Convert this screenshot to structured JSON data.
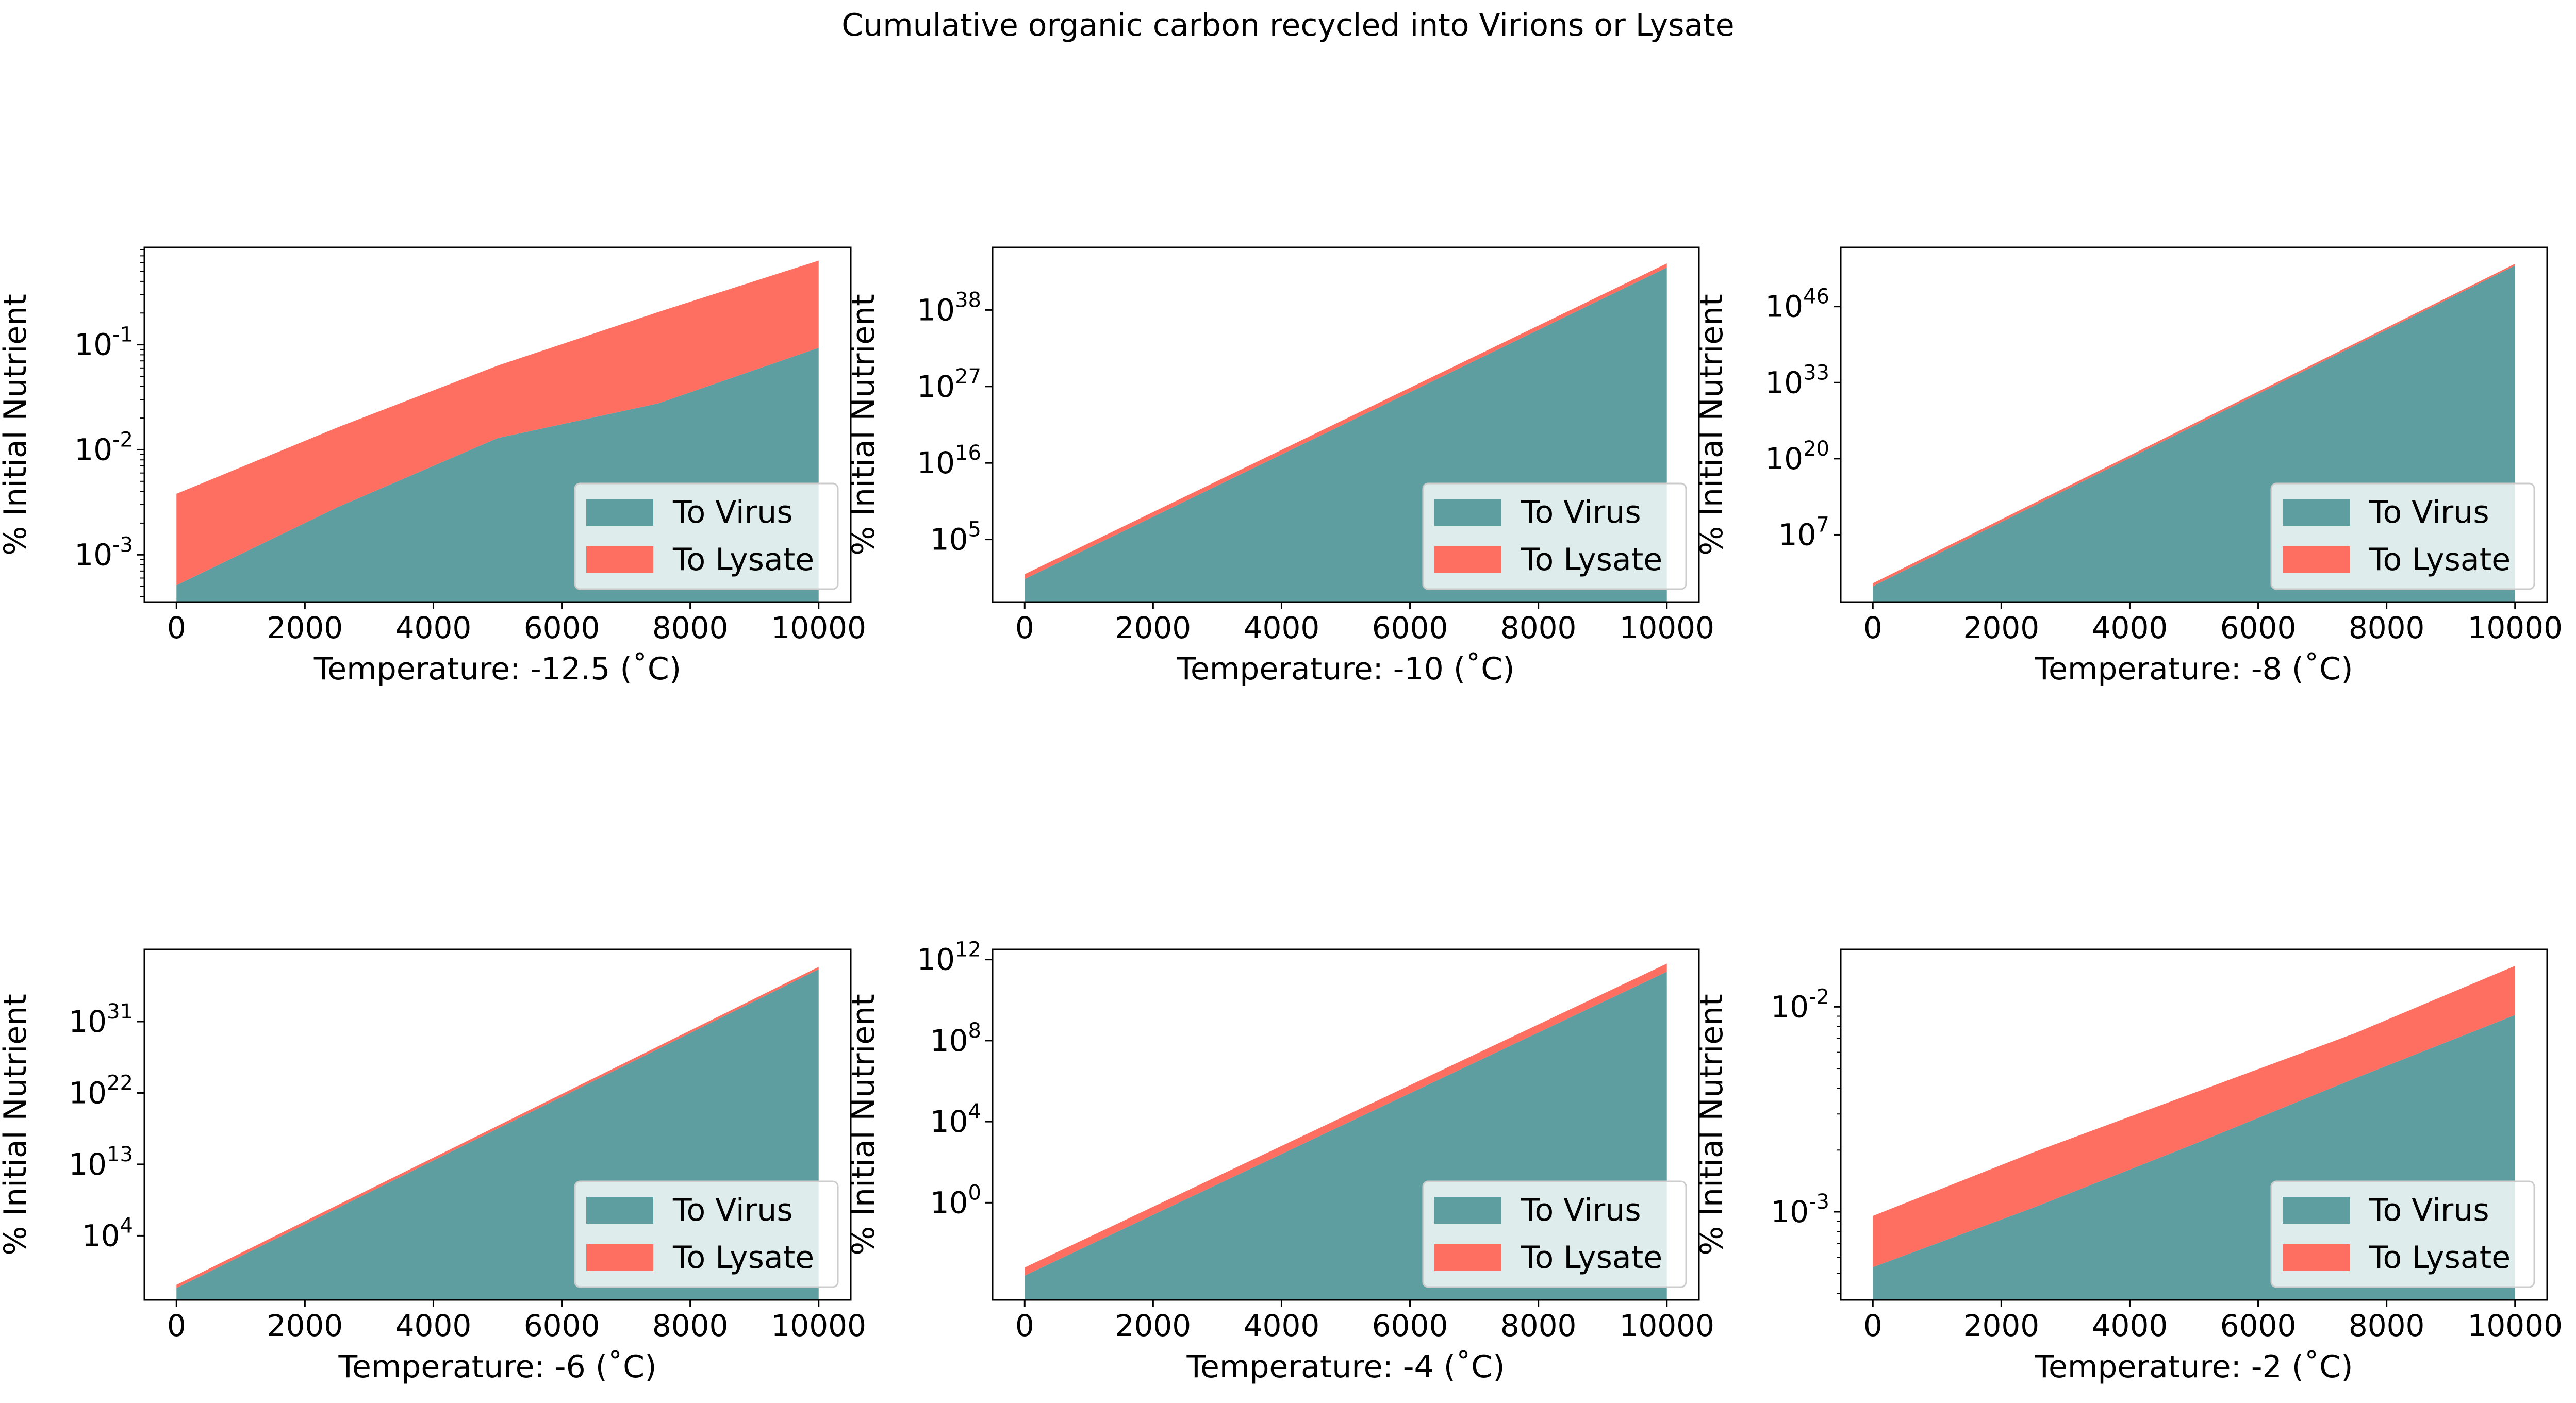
{
  "figure": {
    "title": "Cumulative organic carbon recycled into Virions or Lysate"
  },
  "colors": {
    "virus": "#5f9ea0",
    "lysate": "#ff6f61",
    "legend_bg": "#ffffff",
    "axis": "#000000"
  },
  "chart_data": [
    {
      "type": "area",
      "stacked": true,
      "yscale": "log",
      "xlabel": "Temperature: -12.5 (˚C)",
      "ylabel": "% Initial Nutrient",
      "xlim": [
        -500,
        10500
      ],
      "ylim_exp": [
        -3.45,
        -0.0746
      ],
      "xticks": [
        0,
        2000,
        4000,
        6000,
        8000,
        10000
      ],
      "yticks": [
        {
          "exp": -3,
          "label": "10^-3"
        },
        {
          "exp": -2,
          "label": "10^-2"
        },
        {
          "exp": -1,
          "label": "10^-1"
        }
      ],
      "x": [
        0,
        2500,
        5000,
        7500,
        10000
      ],
      "series": [
        {
          "name": "To Virus",
          "top_exp": [
            -3.29,
            -2.55,
            -1.89,
            -1.56,
            -1.03
          ]
        },
        {
          "name": "To Lysate",
          "top_exp": [
            -2.42,
            -1.79,
            -1.2,
            -0.69,
            -0.2
          ]
        }
      ],
      "legend": {
        "location": "lower right",
        "entries": [
          "To Virus",
          "To Lysate"
        ]
      }
    },
    {
      "type": "area",
      "stacked": true,
      "yscale": "log",
      "xlabel": "Temperature: -10 (˚C)",
      "ylabel": "% Initial Nutrient",
      "xlim": [
        -500,
        10500
      ],
      "ylim_exp": [
        -4.0,
        47.0
      ],
      "xticks": [
        0,
        2000,
        4000,
        6000,
        8000,
        10000
      ],
      "yticks": [
        {
          "exp": 5,
          "label": "10^5"
        },
        {
          "exp": 16,
          "label": "10^16"
        },
        {
          "exp": 27,
          "label": "10^27"
        },
        {
          "exp": 38,
          "label": "10^38"
        }
      ],
      "x": [
        0,
        10000
      ],
      "series": [
        {
          "name": "To Virus",
          "top_exp": [
            -0.7,
            44.1
          ]
        },
        {
          "name": "To Lysate",
          "top_exp": [
            0.0,
            44.7
          ]
        }
      ],
      "legend": {
        "location": "lower right",
        "entries": [
          "To Virus",
          "To Lysate"
        ]
      }
    },
    {
      "type": "area",
      "stacked": true,
      "yscale": "log",
      "xlabel": "Temperature: -8 (˚C)",
      "ylabel": "% Initial Nutrient",
      "xlim": [
        -500,
        10500
      ],
      "ylim_exp": [
        -4.5,
        56.1
      ],
      "xticks": [
        0,
        2000,
        4000,
        6000,
        8000,
        10000
      ],
      "yticks": [
        {
          "exp": 7,
          "label": "10^7"
        },
        {
          "exp": 20,
          "label": "10^20"
        },
        {
          "exp": 33,
          "label": "10^33"
        },
        {
          "exp": 46,
          "label": "10^46"
        }
      ],
      "x": [
        0,
        10000
      ],
      "series": [
        {
          "name": "To Virus",
          "top_exp": [
            -1.8,
            53.0
          ]
        },
        {
          "name": "To Lysate",
          "top_exp": [
            -1.3,
            53.3
          ]
        }
      ],
      "legend": {
        "location": "lower right",
        "entries": [
          "To Virus",
          "To Lysate"
        ]
      }
    },
    {
      "type": "area",
      "stacked": true,
      "yscale": "log",
      "xlabel": "Temperature: -6 (˚C)",
      "ylabel": "% Initial Nutrient",
      "xlim": [
        -500,
        10500
      ],
      "ylim_exp": [
        -4.1,
        40.1
      ],
      "xticks": [
        0,
        2000,
        4000,
        6000,
        8000,
        10000
      ],
      "yticks": [
        {
          "exp": 4,
          "label": "10^4"
        },
        {
          "exp": 13,
          "label": "10^13"
        },
        {
          "exp": 22,
          "label": "10^22"
        },
        {
          "exp": 31,
          "label": "10^31"
        }
      ],
      "x": [
        0,
        10000
      ],
      "series": [
        {
          "name": "To Virus",
          "top_exp": [
            -2.6,
            37.6
          ]
        },
        {
          "name": "To Lysate",
          "top_exp": [
            -2.2,
            37.9
          ]
        }
      ],
      "legend": {
        "location": "lower right",
        "entries": [
          "To Virus",
          "To Lysate"
        ]
      }
    },
    {
      "type": "area",
      "stacked": true,
      "yscale": "log",
      "xlabel": "Temperature: -4 (˚C)",
      "ylabel": "% Initial Nutrient",
      "xlim": [
        -500,
        10500
      ],
      "ylim_exp": [
        -4.8,
        12.5
      ],
      "xticks": [
        0,
        2000,
        4000,
        6000,
        8000,
        10000
      ],
      "yticks": [
        {
          "exp": 0,
          "label": "10^0"
        },
        {
          "exp": 4,
          "label": "10^4"
        },
        {
          "exp": 8,
          "label": "10^8"
        },
        {
          "exp": 12,
          "label": "10^12"
        }
      ],
      "x": [
        0,
        10000
      ],
      "series": [
        {
          "name": "To Virus",
          "top_exp": [
            -3.6,
            11.4
          ]
        },
        {
          "name": "To Lysate",
          "top_exp": [
            -3.2,
            11.8
          ]
        }
      ],
      "legend": {
        "location": "lower right",
        "entries": [
          "To Virus",
          "To Lysate"
        ]
      }
    },
    {
      "type": "area",
      "stacked": true,
      "yscale": "log",
      "xlabel": "Temperature: -2 (˚C)",
      "ylabel": "% Initial Nutrient",
      "xlim": [
        -500,
        10500
      ],
      "ylim_exp": [
        -3.43,
        -1.72
      ],
      "xticks": [
        0,
        2000,
        4000,
        6000,
        8000,
        10000
      ],
      "yticks": [
        {
          "exp": -3,
          "label": "10^-3"
        },
        {
          "exp": -2,
          "label": "10^-2"
        }
      ],
      "x": [
        0,
        2500,
        5000,
        7500,
        10000
      ],
      "series": [
        {
          "name": "To Virus",
          "top_exp": [
            -3.27,
            -2.98,
            -2.67,
            -2.35,
            -2.04
          ]
        },
        {
          "name": "To Lysate",
          "top_exp": [
            -3.02,
            -2.71,
            -2.42,
            -2.13,
            -1.8
          ]
        }
      ],
      "legend": {
        "location": "lower right",
        "entries": [
          "To Virus",
          "To Lysate"
        ]
      }
    }
  ]
}
